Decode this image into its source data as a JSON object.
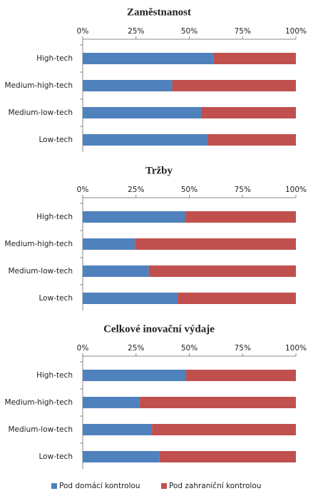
{
  "chart_data": [
    {
      "type": "stacked-bar",
      "orientation": "horizontal",
      "title": "Zaměstnanost",
      "categories": [
        "High-tech",
        "Medium-high-tech",
        "Medium-low-tech",
        "Low-tech"
      ],
      "series": [
        {
          "name": "Pod domácí kontrolou",
          "color": "#4f81bd",
          "values": [
            61.5,
            42,
            55.5,
            58.5
          ]
        },
        {
          "name": "Pod zahraniční kontrolou",
          "color": "#c0504d",
          "values": [
            38.5,
            58,
            44.5,
            41.5
          ]
        }
      ],
      "xlim": [
        0,
        100
      ],
      "xticks": [
        {
          "value": 0,
          "label": "0%"
        },
        {
          "value": 25,
          "label": "25%"
        },
        {
          "value": 50,
          "label": "50%"
        },
        {
          "value": 75,
          "label": "75%"
        },
        {
          "value": 100,
          "label": "100%"
        }
      ]
    },
    {
      "type": "stacked-bar",
      "orientation": "horizontal",
      "title": "Tržby",
      "categories": [
        "High-tech",
        "Medium-high-tech",
        "Medium-low-tech",
        "Low-tech"
      ],
      "series": [
        {
          "color": "#4f81bd",
          "values": [
            48,
            24.5,
            31,
            44.5
          ]
        },
        {
          "color": "#c0504d",
          "values": [
            52,
            75.5,
            69,
            55.5
          ]
        }
      ],
      "xlim": [
        0,
        100
      ],
      "xticks": [
        {
          "value": 0,
          "label": "0%"
        },
        {
          "value": 25,
          "label": "25%"
        },
        {
          "value": 50,
          "label": "50%"
        },
        {
          "value": 75,
          "label": "75%"
        },
        {
          "value": 100,
          "label": "100%"
        }
      ]
    },
    {
      "type": "stacked-bar",
      "orientation": "horizontal",
      "title": "Celkové inovační výdaje",
      "categories": [
        "High-tech",
        "Medium-high-tech",
        "Medium-low-tech",
        "Low-tech"
      ],
      "series": [
        {
          "color": "#4f81bd",
          "values": [
            48.5,
            26.5,
            32.5,
            36
          ]
        },
        {
          "color": "#c0504d",
          "values": [
            51.5,
            73.5,
            67.5,
            64
          ]
        }
      ],
      "xlim": [
        0,
        100
      ],
      "xticks": [
        {
          "value": 0,
          "label": "0%"
        },
        {
          "value": 25,
          "label": "25%"
        },
        {
          "value": 50,
          "label": "50%"
        },
        {
          "value": 75,
          "label": "75%"
        },
        {
          "value": 100,
          "label": "100%"
        }
      ]
    }
  ]
}
